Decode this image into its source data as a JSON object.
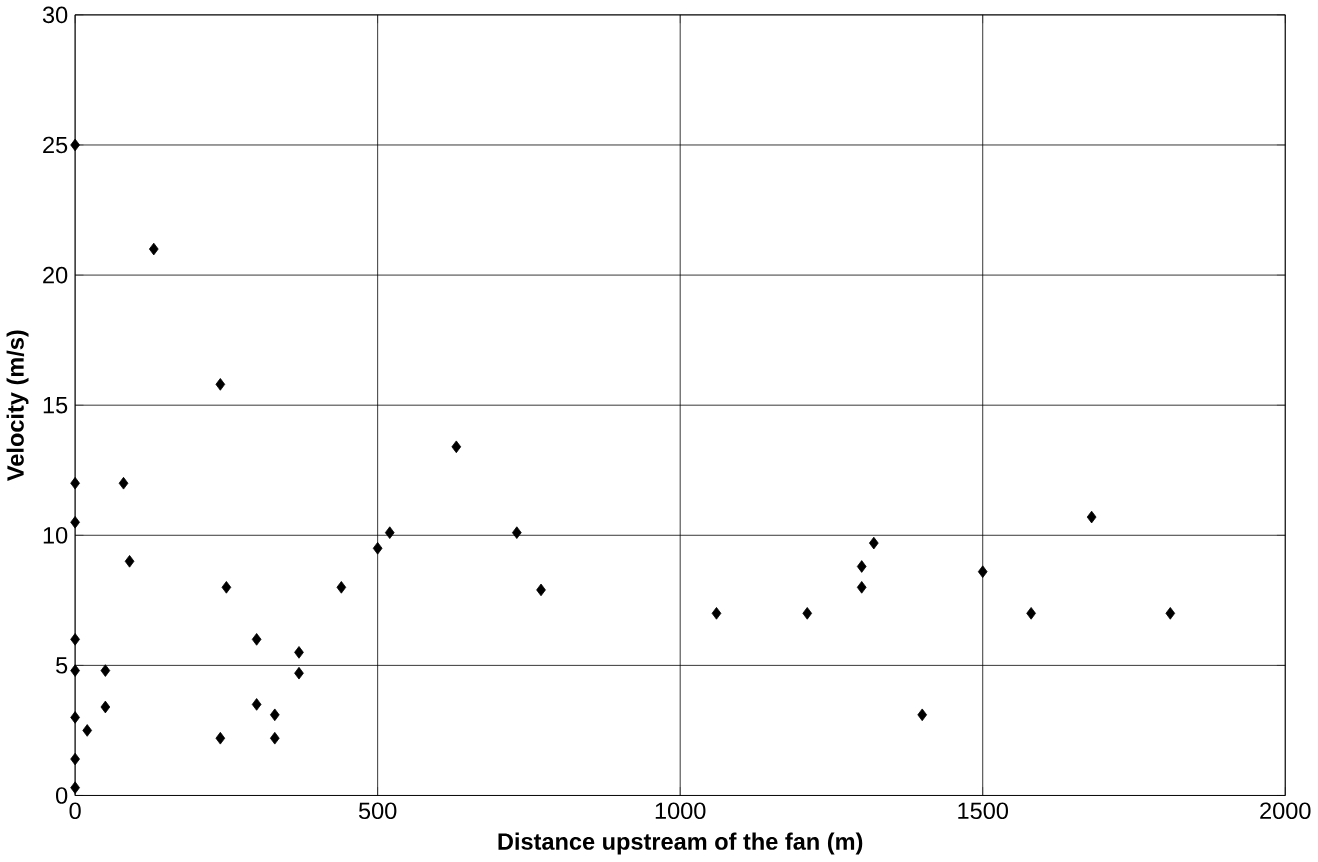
{
  "chart_data": {
    "type": "scatter",
    "xlabel": "Distance upstream of the fan (m)",
    "ylabel": "Velocity (m/s)",
    "x": [
      0,
      0,
      0,
      0,
      0,
      0,
      0,
      0,
      20,
      50,
      50,
      80,
      90,
      130,
      240,
      250,
      240,
      300,
      300,
      330,
      330,
      370,
      370,
      440,
      500,
      520,
      630,
      730,
      770,
      1060,
      1210,
      1300,
      1300,
      1320,
      1400,
      1500,
      1580,
      1680,
      1810
    ],
    "series": [
      {
        "color": "#000000",
        "values": [
          25,
          12,
          10.5,
          6,
          4.8,
          3,
          1.4,
          0.3,
          2.5,
          4.8,
          3.4,
          12,
          9,
          21,
          15.8,
          8,
          2.2,
          6,
          3.5,
          3.1,
          2.2,
          5.5,
          4.7,
          8,
          9.5,
          10.1,
          13.4,
          10.1,
          7.9,
          7,
          7,
          8.8,
          8,
          9.7,
          3.1,
          8.6,
          7,
          10.7,
          7
        ]
      }
    ],
    "xlim": [
      0,
      2000
    ],
    "ylim": [
      0,
      30
    ],
    "xticks": [
      0,
      500,
      1000,
      1500,
      2000
    ],
    "yticks": [
      0,
      5,
      10,
      15,
      20,
      25,
      30
    ],
    "grid": true,
    "marker": "diamond"
  }
}
